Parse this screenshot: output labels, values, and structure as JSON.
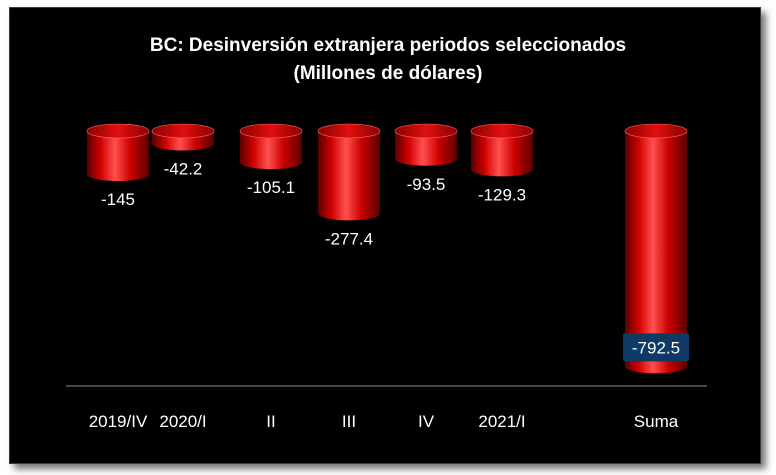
{
  "chart_data": {
    "type": "bar",
    "title": "BC: Desinversión extranjera periodos seleccionados",
    "subtitle": "(Millones de dólares)",
    "categories": [
      "2019/IV",
      "2020/I",
      "II",
      "III",
      "IV",
      "2021/I",
      "Suma"
    ],
    "values": [
      -145,
      -42.2,
      -105.1,
      -277.4,
      -93.5,
      -129.3,
      -792.5
    ],
    "value_labels": [
      "-145",
      "-42.2",
      "-105.1",
      "-277.4",
      "-93.5",
      "-129.3",
      "-792.5"
    ],
    "xlabel": "",
    "ylabel": "",
    "ylim": [
      -800,
      0
    ],
    "grid": false,
    "legend": "none",
    "colors": {
      "bar": "#d40000",
      "bar_dark": "#6e0000",
      "bar_light": "#ff4a4a",
      "highlight_label_bg": "#0f3a66",
      "background": "#000000",
      "text": "#ffffff"
    }
  }
}
